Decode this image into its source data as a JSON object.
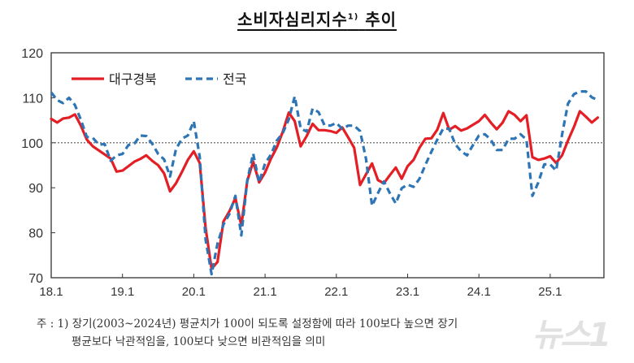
{
  "chart_data": {
    "type": "line",
    "title": "소비자심리지수",
    "title_footnote_mark": "1)",
    "title_suffix": "추이",
    "xlabel": "",
    "ylabel": "",
    "ylim": [
      70,
      120
    ],
    "yticks": [
      70,
      80,
      90,
      100,
      110,
      120
    ],
    "xtick_labels": [
      "18.1",
      "19.1",
      "20.1",
      "21.1",
      "22.1",
      "23.1",
      "24.1",
      "25.1"
    ],
    "reference_line": 100,
    "grid": false,
    "legend_position": "top-left inside",
    "x_start": "2018-01",
    "x_end": "2025-09",
    "frequency": "monthly",
    "series": [
      {
        "name": "대구경북",
        "color": "#e31e24",
        "style": "solid",
        "values": [
          105.3,
          104.5,
          105.4,
          105.6,
          106.3,
          103.8,
          100.7,
          99.2,
          98.3,
          97.4,
          96.5,
          93.6,
          93.8,
          94.8,
          95.8,
          96.4,
          97.2,
          96.0,
          95.0,
          93.2,
          89.2,
          91.0,
          93.5,
          96.2,
          98.1,
          95.5,
          81.0,
          72.0,
          73.5,
          82.5,
          84.8,
          87.7,
          81.6,
          91.5,
          95.8,
          91.2,
          93.4,
          96.5,
          99.0,
          102.5,
          106.7,
          104.8,
          99.2,
          101.5,
          104.2,
          102.8,
          102.8,
          102.6,
          102.2,
          103.4,
          101.2,
          98.9,
          90.6,
          93.0,
          95.4,
          91.7,
          91.0,
          92.8,
          94.5,
          92.0,
          94.8,
          96.2,
          98.9,
          100.9,
          101.0,
          102.9,
          106.6,
          102.9,
          103.7,
          102.7,
          103.2,
          104.0,
          104.8,
          106.2,
          104.5,
          103.0,
          104.5,
          107.0,
          106.2,
          104.8,
          106.1,
          96.8,
          96.2,
          96.5,
          97.0,
          95.5,
          97.2,
          100.5,
          103.5,
          107.0,
          105.8,
          104.5,
          105.6
        ]
      },
      {
        "name": "전국",
        "color": "#2e75b6",
        "style": "dashed",
        "values": [
          111.2,
          109.5,
          108.8,
          110.0,
          108.4,
          105.1,
          101.3,
          101.1,
          99.6,
          99.7,
          96.0,
          97.2,
          97.5,
          99.5,
          99.8,
          101.6,
          101.5,
          99.8,
          97.5,
          96.3,
          92.5,
          98.6,
          100.9,
          101.6,
          104.8,
          96.9,
          78.4,
          70.8,
          77.6,
          81.8,
          84.2,
          88.2,
          79.4,
          91.6,
          97.6,
          91.2,
          95.4,
          97.4,
          100.5,
          102.2,
          105.2,
          110.3,
          103.2,
          102.5,
          107.6,
          106.8,
          103.9,
          103.8,
          104.4,
          103.1,
          103.8,
          103.8,
          102.6,
          96.4,
          86.0,
          88.8,
          91.4,
          88.8,
          86.5,
          89.9,
          90.7,
          90.2,
          92.0,
          95.1,
          98.0,
          100.7,
          103.2,
          103.1,
          99.7,
          98.1,
          97.2,
          99.5,
          101.6,
          101.9,
          100.7,
          98.4,
          98.4,
          100.9,
          100.9,
          101.9,
          100.7,
          88.2,
          91.2,
          95.2,
          95.2,
          93.8,
          101.8,
          108.7,
          110.8,
          111.4,
          111.4,
          110.1,
          109.5
        ]
      }
    ]
  },
  "legend": {
    "items": [
      {
        "label": "대구경북",
        "color": "#e31e24",
        "style": "solid"
      },
      {
        "label": "전국",
        "color": "#2e75b6",
        "style": "dashed"
      }
    ]
  },
  "footnote": {
    "line1": "주 : 1) 장기(2003~2024년) 평균치가 100이 되도록 설정함에 따라 100보다 높으면 장기",
    "line2": "          평균보다 낙관적임을, 100보다 낮으면 비관적임을 의미"
  },
  "watermark": "뉴스1"
}
